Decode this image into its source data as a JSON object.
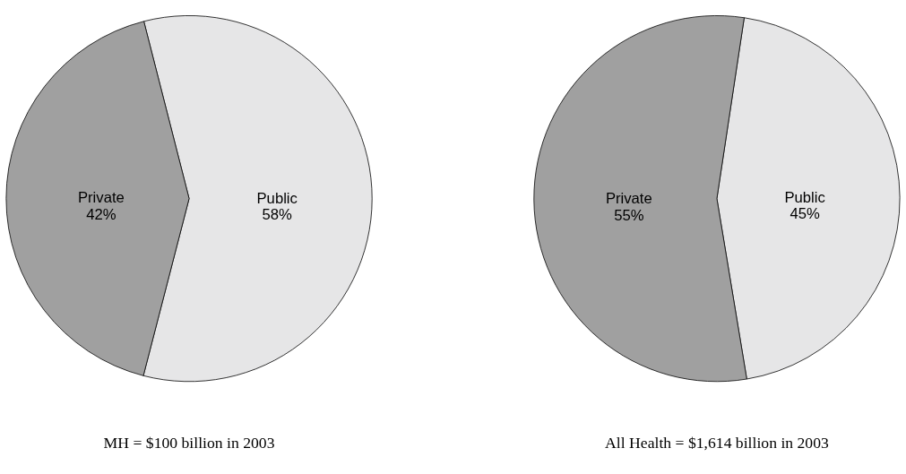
{
  "chart_data": [
    {
      "type": "pie",
      "title": "MH = $100 billion in 2003",
      "categories": [
        "Public",
        "Private"
      ],
      "values": [
        58,
        42
      ],
      "value_labels": [
        "58%",
        "42%"
      ],
      "colors": [
        "#e6e6e7",
        "#a0a0a0"
      ],
      "legend": false
    },
    {
      "type": "pie",
      "title": "All Health = $1,614 billion in 2003",
      "categories": [
        "Public",
        "Private"
      ],
      "values": [
        45,
        55
      ],
      "value_labels": [
        "45%",
        "55%"
      ],
      "colors": [
        "#e6e6e7",
        "#a0a0a0"
      ],
      "legend": false
    }
  ]
}
